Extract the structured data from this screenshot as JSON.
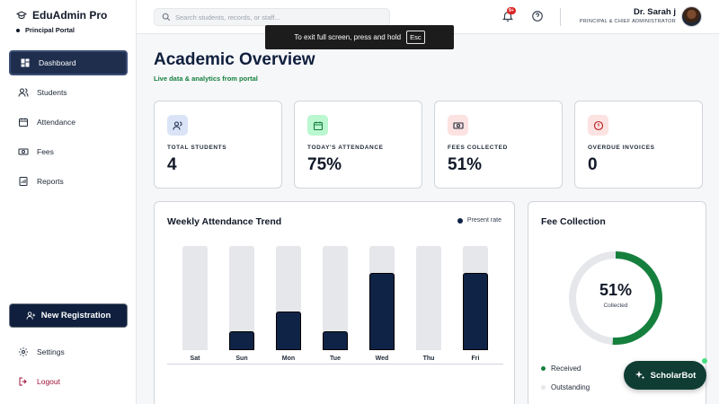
{
  "brand": {
    "name": "EduAdmin Pro",
    "portal": "Principal Portal"
  },
  "sidebar": {
    "items": [
      {
        "label": "Dashboard",
        "icon": "dashboard-icon",
        "active": true
      },
      {
        "label": "Students",
        "icon": "users-icon"
      },
      {
        "label": "Attendance",
        "icon": "calendar-icon"
      },
      {
        "label": "Fees",
        "icon": "cash-icon"
      },
      {
        "label": "Reports",
        "icon": "report-icon"
      }
    ],
    "new_registration": "New Registration",
    "settings": "Settings",
    "logout": "Logout"
  },
  "header": {
    "search_placeholder": "Search students, records, or staff...",
    "notification_badge": "9+",
    "user_name": "Dr. Sarah j",
    "user_role": "PRINCIPAL & CHIEF ADMINISTRATOR"
  },
  "toast": {
    "text": "To exit full screen, press and hold",
    "key": "Esc"
  },
  "main": {
    "title": "Academic Overview",
    "subtitle": "Live data & analytics from portal"
  },
  "stats": [
    {
      "label": "TOTAL STUDENTS",
      "value": "4",
      "icon": "users-icon",
      "bg": "#dbe4f7",
      "fg": "#1f2e4d"
    },
    {
      "label": "TODAY'S ATTENDANCE",
      "value": "75%",
      "icon": "calendar-icon",
      "bg": "#bbf7d0",
      "fg": "#15803d"
    },
    {
      "label": "FEES COLLECTED",
      "value": "51%",
      "icon": "cash-icon",
      "bg": "#fde2e2",
      "fg": "#1f2937"
    },
    {
      "label": "OVERDUE INVOICES",
      "value": "0",
      "icon": "alert-icon",
      "bg": "#fde2e2",
      "fg": "#b91c1c"
    }
  ],
  "attendance_chart": {
    "title": "Weekly Attendance Trend",
    "legend": "Present rate"
  },
  "chart_data": {
    "type": "bar",
    "title": "Weekly Attendance Trend",
    "categories": [
      "Sat",
      "Sun",
      "Mon",
      "Tue",
      "Wed",
      "Thu",
      "Fri"
    ],
    "series": [
      {
        "name": "Present rate",
        "values": [
          0,
          25,
          50,
          25,
          100,
          0,
          100
        ]
      }
    ],
    "ylim": [
      0,
      100
    ],
    "xlabel": "",
    "ylabel": "",
    "grid": false,
    "legend_position": "top-right"
  },
  "fee_collection": {
    "title": "Fee Collection",
    "percent": "51%",
    "percent_value": 51,
    "caption": "Collected",
    "legend": [
      {
        "label": "Received",
        "color": "#15803d"
      },
      {
        "label": "Outstanding",
        "color": "#e5e7eb"
      }
    ]
  },
  "scholarbot": {
    "label": "ScholarBot"
  }
}
